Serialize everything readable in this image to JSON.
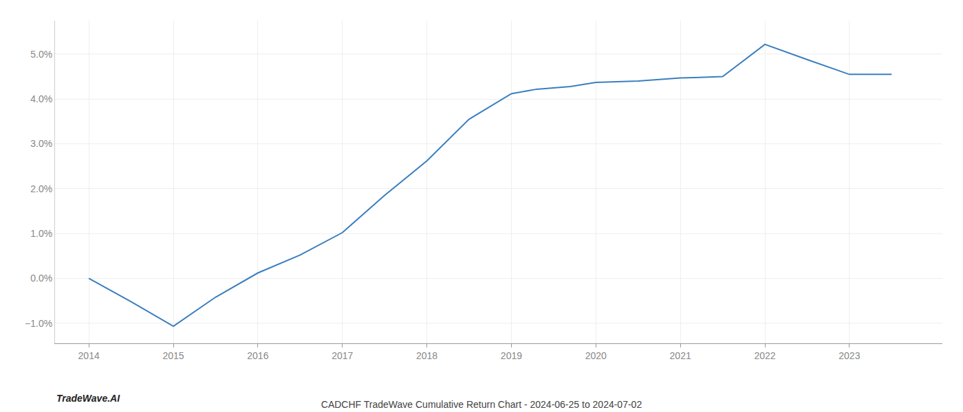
{
  "chart_data": {
    "type": "line",
    "title": "CADCHF TradeWave Cumulative Return Chart - 2024-06-25 to 2024-07-02",
    "annotations": [
      {
        "text": "TradeWave.AI"
      }
    ],
    "x": [
      2014,
      2014.5,
      2015,
      2015.5,
      2016,
      2016.5,
      2017,
      2017.5,
      2018,
      2018.5,
      2019,
      2019.3,
      2019.7,
      2020,
      2020.5,
      2021,
      2021.5,
      2022,
      2022.5,
      2023,
      2023.5
    ],
    "values": [
      0.0,
      -0.52,
      -1.07,
      -0.42,
      0.12,
      0.52,
      1.02,
      1.85,
      2.62,
      3.55,
      4.12,
      4.22,
      4.28,
      4.37,
      4.4,
      4.47,
      4.5,
      5.22,
      4.88,
      4.55,
      4.55
    ],
    "color": "#3a7ebf",
    "xlim": [
      2013.6,
      2024.1
    ],
    "ylim": [
      -1.45,
      5.75
    ],
    "xticks": [
      2014,
      2015,
      2016,
      2017,
      2018,
      2019,
      2020,
      2021,
      2022,
      2023
    ],
    "yticks": [
      {
        "value": -1.0,
        "label": "−1.0%"
      },
      {
        "value": 0.0,
        "label": "0.0%"
      },
      {
        "value": 1.0,
        "label": "1.0%"
      },
      {
        "value": 2.0,
        "label": "2.0%"
      },
      {
        "value": 3.0,
        "label": "3.0%"
      },
      {
        "value": 4.0,
        "label": "4.0%"
      },
      {
        "value": 5.0,
        "label": "5.0%"
      }
    ],
    "grid": true
  }
}
